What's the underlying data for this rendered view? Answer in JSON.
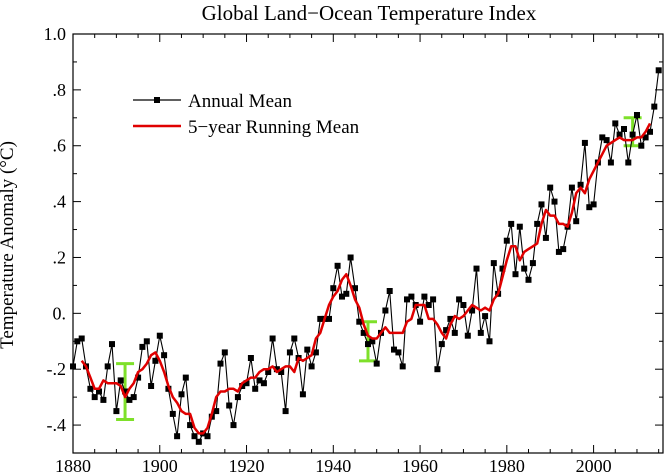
{
  "chart_data": {
    "type": "line",
    "title": "Global Land−Ocean Temperature Index",
    "xlabel": "",
    "ylabel": "Temperature Anomaly (°C)",
    "xlim": [
      1880,
      2016
    ],
    "ylim": [
      -0.5,
      1.0
    ],
    "x_ticks": [
      1880,
      1900,
      1920,
      1940,
      1960,
      1980,
      2000
    ],
    "x_tick_labels": [
      "1880",
      "1900",
      "1920",
      "1940",
      "1960",
      "1980",
      "2000"
    ],
    "y_ticks": [
      1.0,
      0.8,
      0.6,
      0.4,
      0.2,
      0.0,
      -0.2,
      -0.4
    ],
    "y_tick_labels": [
      "1.0",
      ".8",
      ".6",
      ".4",
      ".2",
      "0.",
      "-.2",
      "-.4"
    ],
    "grid": false,
    "legend_position": "top-left",
    "colors": {
      "annual": "#000000",
      "running": "#e00000",
      "uncertainty": "#7ee02a"
    },
    "series": [
      {
        "name": "Annual Mean",
        "marker": "square",
        "x": [
          1880,
          1881,
          1882,
          1883,
          1884,
          1885,
          1886,
          1887,
          1888,
          1889,
          1890,
          1891,
          1892,
          1893,
          1894,
          1895,
          1896,
          1897,
          1898,
          1899,
          1900,
          1901,
          1902,
          1903,
          1904,
          1905,
          1906,
          1907,
          1908,
          1909,
          1910,
          1911,
          1912,
          1913,
          1914,
          1915,
          1916,
          1917,
          1918,
          1919,
          1920,
          1921,
          1922,
          1923,
          1924,
          1925,
          1926,
          1927,
          1928,
          1929,
          1930,
          1931,
          1932,
          1933,
          1934,
          1935,
          1936,
          1937,
          1938,
          1939,
          1940,
          1941,
          1942,
          1943,
          1944,
          1945,
          1946,
          1947,
          1948,
          1949,
          1950,
          1951,
          1952,
          1953,
          1954,
          1955,
          1956,
          1957,
          1958,
          1959,
          1960,
          1961,
          1962,
          1963,
          1964,
          1965,
          1966,
          1967,
          1968,
          1969,
          1970,
          1971,
          1972,
          1973,
          1974,
          1975,
          1976,
          1977,
          1978,
          1979,
          1980,
          1981,
          1982,
          1983,
          1984,
          1985,
          1986,
          1987,
          1988,
          1989,
          1990,
          1991,
          1992,
          1993,
          1994,
          1995,
          1996,
          1997,
          1998,
          1999,
          2000,
          2001,
          2002,
          2003,
          2004,
          2005,
          2006,
          2007,
          2008,
          2009,
          2010,
          2011,
          2012,
          2013,
          2014,
          2015
        ],
        "values": [
          -0.19,
          -0.1,
          -0.09,
          -0.19,
          -0.27,
          -0.3,
          -0.28,
          -0.31,
          -0.19,
          -0.11,
          -0.35,
          -0.24,
          -0.28,
          -0.31,
          -0.3,
          -0.23,
          -0.12,
          -0.1,
          -0.26,
          -0.17,
          -0.08,
          -0.15,
          -0.27,
          -0.36,
          -0.44,
          -0.29,
          -0.23,
          -0.4,
          -0.44,
          -0.46,
          -0.43,
          -0.44,
          -0.37,
          -0.35,
          -0.18,
          -0.14,
          -0.33,
          -0.4,
          -0.3,
          -0.26,
          -0.25,
          -0.16,
          -0.27,
          -0.24,
          -0.25,
          -0.21,
          -0.09,
          -0.2,
          -0.21,
          -0.35,
          -0.14,
          -0.09,
          -0.16,
          -0.29,
          -0.13,
          -0.19,
          -0.14,
          -0.02,
          -0.02,
          -0.02,
          0.09,
          0.17,
          0.06,
          0.07,
          0.2,
          0.09,
          -0.03,
          -0.07,
          -0.11,
          -0.1,
          -0.18,
          -0.07,
          0.01,
          0.08,
          -0.13,
          -0.14,
          -0.19,
          0.05,
          0.06,
          0.03,
          -0.03,
          0.06,
          0.03,
          0.05,
          -0.2,
          -0.11,
          -0.06,
          -0.02,
          -0.07,
          0.05,
          0.03,
          -0.08,
          0.01,
          0.16,
          -0.07,
          -0.01,
          -0.1,
          0.18,
          0.07,
          0.16,
          0.26,
          0.32,
          0.14,
          0.31,
          0.16,
          0.12,
          0.18,
          0.32,
          0.39,
          0.27,
          0.45,
          0.4,
          0.22,
          0.23,
          0.31,
          0.45,
          0.33,
          0.46,
          0.61,
          0.38,
          0.39,
          0.54,
          0.63,
          0.62,
          0.54,
          0.68,
          0.64,
          0.66,
          0.54,
          0.64,
          0.71,
          0.6,
          0.63,
          0.65,
          0.74,
          0.87
        ]
      },
      {
        "name": "5−year Running Mean",
        "x": [
          1882,
          1883,
          1884,
          1885,
          1886,
          1887,
          1888,
          1889,
          1890,
          1891,
          1892,
          1893,
          1894,
          1895,
          1896,
          1897,
          1898,
          1899,
          1900,
          1901,
          1902,
          1903,
          1904,
          1905,
          1906,
          1907,
          1908,
          1909,
          1910,
          1911,
          1912,
          1913,
          1914,
          1915,
          1916,
          1917,
          1918,
          1919,
          1920,
          1921,
          1922,
          1923,
          1924,
          1925,
          1926,
          1927,
          1928,
          1929,
          1930,
          1931,
          1932,
          1933,
          1934,
          1935,
          1936,
          1937,
          1938,
          1939,
          1940,
          1941,
          1942,
          1943,
          1944,
          1945,
          1946,
          1947,
          1948,
          1949,
          1950,
          1951,
          1952,
          1953,
          1954,
          1955,
          1956,
          1957,
          1958,
          1959,
          1960,
          1961,
          1962,
          1963,
          1964,
          1965,
          1966,
          1967,
          1968,
          1969,
          1970,
          1971,
          1972,
          1973,
          1974,
          1975,
          1976,
          1977,
          1978,
          1979,
          1980,
          1981,
          1982,
          1983,
          1984,
          1985,
          1986,
          1987,
          1988,
          1989,
          1990,
          1991,
          1992,
          1993,
          1994,
          1995,
          1996,
          1997,
          1998,
          1999,
          2000,
          2001,
          2002,
          2003,
          2004,
          2005,
          2006,
          2007,
          2008,
          2009,
          2010,
          2011,
          2012,
          2013
        ],
        "values": [
          -0.17,
          -0.19,
          -0.23,
          -0.27,
          -0.27,
          -0.24,
          -0.25,
          -0.25,
          -0.25,
          -0.26,
          -0.3,
          -0.27,
          -0.25,
          -0.21,
          -0.2,
          -0.18,
          -0.15,
          -0.14,
          -0.17,
          -0.21,
          -0.26,
          -0.3,
          -0.32,
          -0.35,
          -0.36,
          -0.36,
          -0.41,
          -0.43,
          -0.43,
          -0.41,
          -0.36,
          -0.3,
          -0.28,
          -0.28,
          -0.27,
          -0.27,
          -0.28,
          -0.25,
          -0.24,
          -0.23,
          -0.23,
          -0.21,
          -0.2,
          -0.2,
          -0.19,
          -0.21,
          -0.2,
          -0.19,
          -0.19,
          -0.21,
          -0.16,
          -0.17,
          -0.16,
          -0.15,
          -0.09,
          -0.07,
          -0.02,
          0.03,
          0.06,
          0.08,
          0.12,
          0.14,
          0.1,
          0.05,
          0.02,
          -0.04,
          -0.08,
          -0.09,
          -0.09,
          -0.07,
          -0.05,
          -0.07,
          -0.07,
          -0.07,
          -0.07,
          -0.03,
          -0.02,
          0.03,
          0.03,
          0.03,
          -0.02,
          -0.02,
          -0.04,
          -0.07,
          -0.09,
          -0.04,
          -0.01,
          -0.02,
          -0.01,
          0.01,
          0.03,
          0.02,
          0.01,
          0.02,
          0.01,
          0.05,
          0.07,
          0.13,
          0.19,
          0.24,
          0.24,
          0.19,
          0.22,
          0.23,
          0.24,
          0.25,
          0.32,
          0.37,
          0.35,
          0.35,
          0.32,
          0.32,
          0.31,
          0.36,
          0.43,
          0.45,
          0.43,
          0.48,
          0.51,
          0.54,
          0.57,
          0.6,
          0.61,
          0.62,
          0.63,
          0.62,
          0.62,
          0.62,
          0.63,
          0.63,
          0.65,
          0.68
        ]
      }
    ],
    "uncertainty_bars": [
      {
        "x": 1892,
        "low": -0.38,
        "high": -0.18
      },
      {
        "x": 1948,
        "low": -0.17,
        "high": -0.03
      },
      {
        "x": 2009,
        "low": 0.6,
        "high": 0.7
      }
    ]
  }
}
